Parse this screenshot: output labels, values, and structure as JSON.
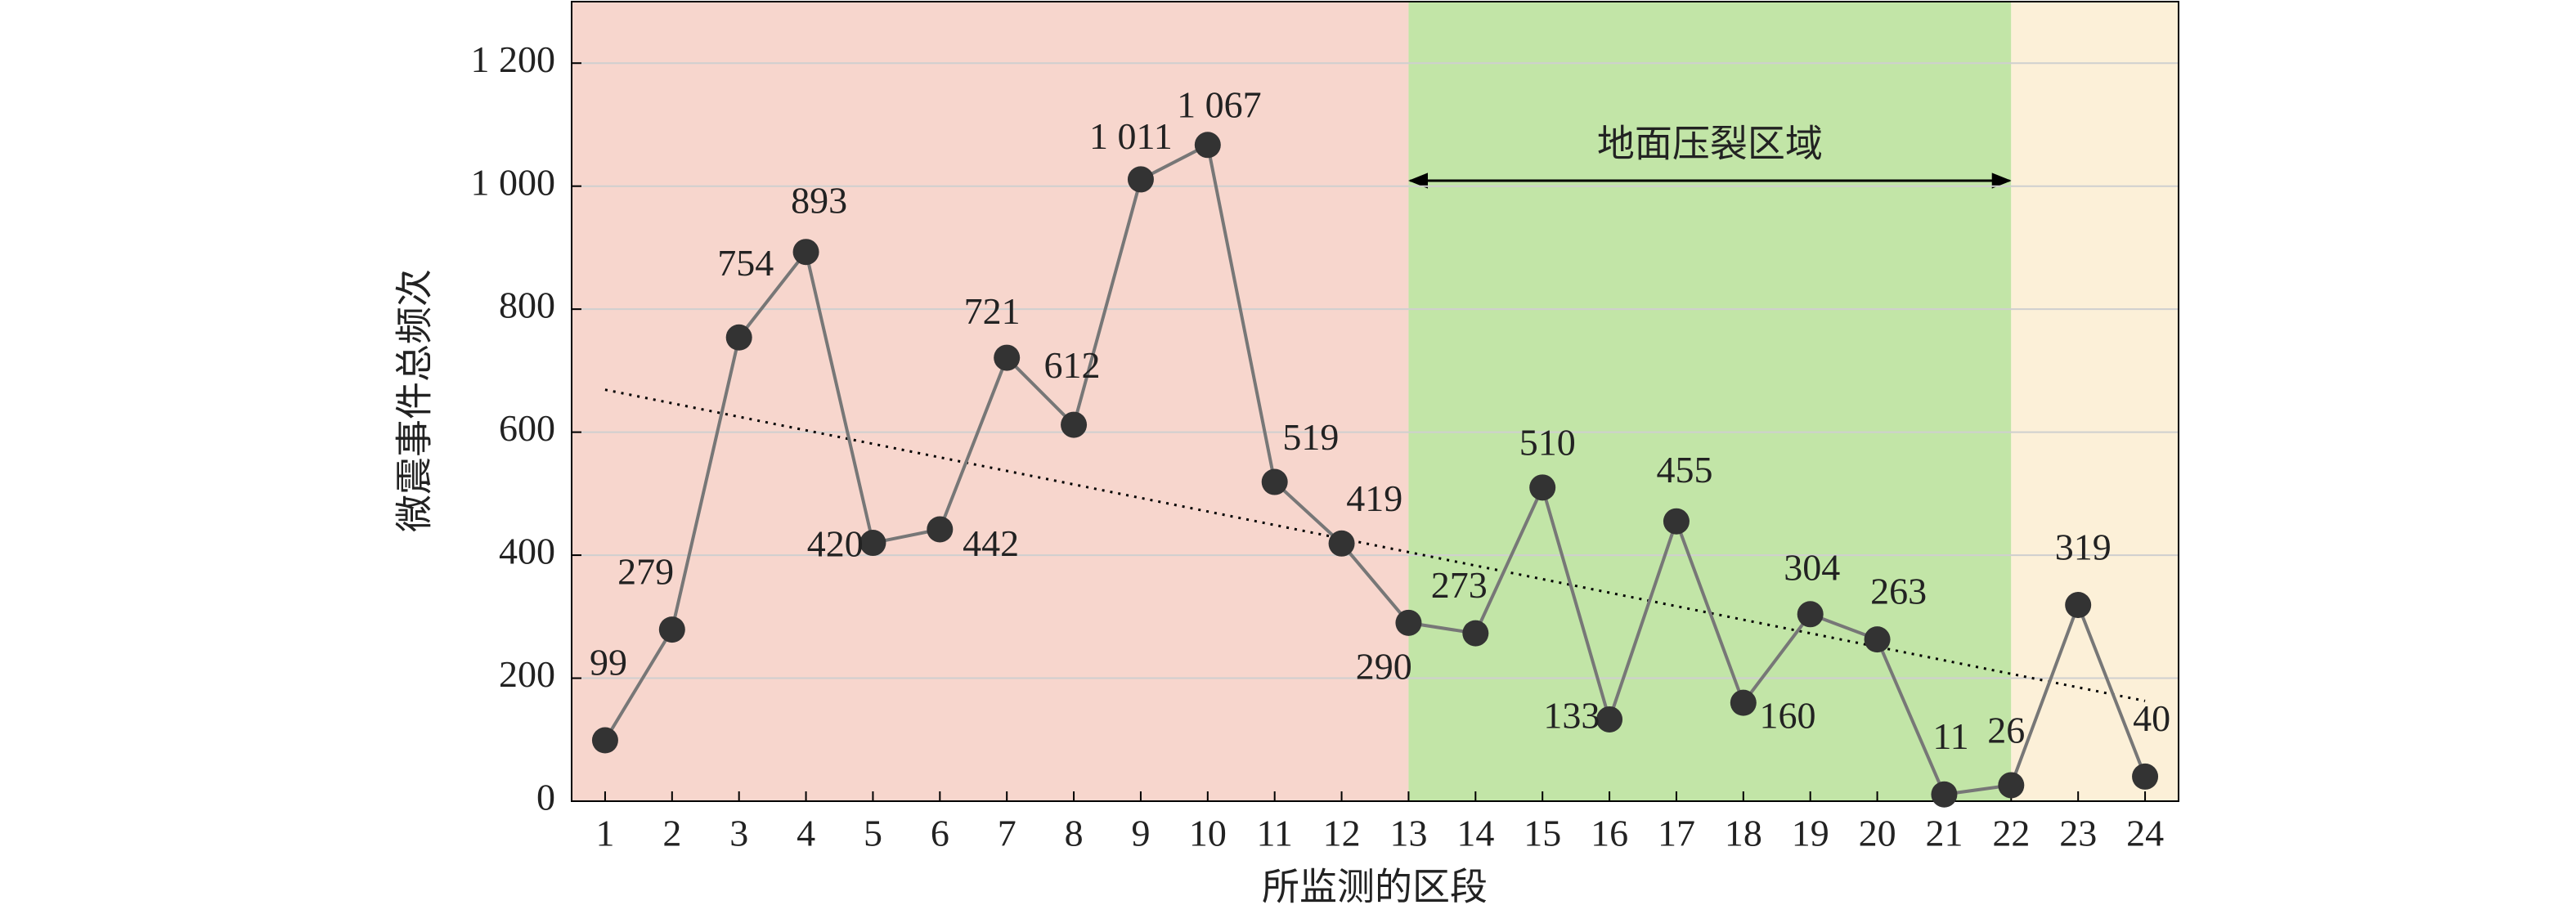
{
  "chart_data": {
    "type": "line",
    "y_label": "微震事件总频次",
    "x_label": "所监测的区段",
    "x": [
      1,
      2,
      3,
      4,
      5,
      6,
      7,
      8,
      9,
      10,
      11,
      12,
      13,
      14,
      15,
      16,
      17,
      18,
      19,
      20,
      21,
      22,
      23,
      24
    ],
    "values": [
      99,
      279,
      754,
      893,
      420,
      442,
      721,
      612,
      1011,
      1067,
      519,
      419,
      290,
      273,
      510,
      133,
      455,
      160,
      304,
      263,
      11,
      26,
      319,
      40
    ],
    "value_labels": [
      "99",
      "279",
      "754",
      "893",
      "420",
      "442",
      "721",
      "612",
      "1 011",
      "1 067",
      "519",
      "419",
      "290",
      "273",
      "510",
      "133",
      "455",
      "160",
      "304",
      "263",
      "11",
      "26",
      "319",
      "40"
    ],
    "line_color": "#777777",
    "marker_color": "#333333",
    "xlim": [
      0.5,
      24.5
    ],
    "ylim": [
      0,
      1300
    ],
    "xticks": [
      1,
      2,
      3,
      4,
      5,
      6,
      7,
      8,
      9,
      10,
      11,
      12,
      13,
      14,
      15,
      16,
      17,
      18,
      19,
      20,
      21,
      22,
      23,
      24
    ],
    "yticks": [
      0,
      200,
      400,
      600,
      800,
      {
        "value": 1000,
        "label": "1 000"
      },
      {
        "value": 1200,
        "label": "1 200"
      }
    ],
    "grid": true,
    "trend": {
      "x": [
        1,
        24
      ],
      "values": [
        669,
        163
      ]
    },
    "regions": [
      {
        "from": 0.5,
        "to": 13,
        "color": "#f7d6cd"
      },
      {
        "from": 13,
        "to": 22,
        "color": "#c2e5a7",
        "label": "地面压裂区域"
      },
      {
        "from": 22,
        "to": 24.5,
        "color": "#fcf0d8"
      }
    ]
  }
}
